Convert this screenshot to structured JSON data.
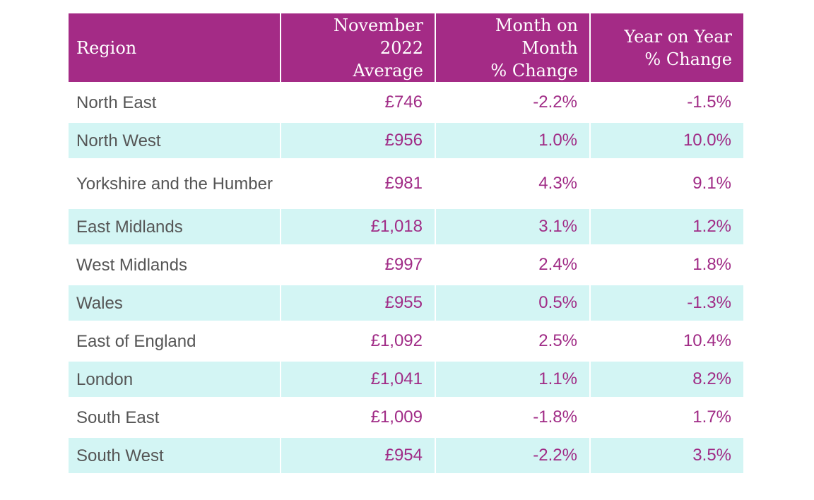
{
  "table": {
    "headers": {
      "region": "Region",
      "average": "November\n2022\nAverage",
      "mom": "Month on\nMonth\n% Change",
      "yoy": "Year on Year\n% Change"
    },
    "rows": [
      {
        "region": "North East",
        "average": "£746",
        "mom": "-2.2%",
        "yoy": "-1.5%"
      },
      {
        "region": "North West",
        "average": "£956",
        "mom": "1.0%",
        "yoy": "10.0%"
      },
      {
        "region": "Yorkshire and the Humber",
        "average": "£981",
        "mom": "4.3%",
        "yoy": "9.1%"
      },
      {
        "region": "East Midlands",
        "average": "£1,018",
        "mom": "3.1%",
        "yoy": "1.2%"
      },
      {
        "region": "West Midlands",
        "average": "£997",
        "mom": "2.4%",
        "yoy": "1.8%"
      },
      {
        "region": "Wales",
        "average": "£955",
        "mom": "0.5%",
        "yoy": "-1.3%"
      },
      {
        "region": "East of England",
        "average": "£1,092",
        "mom": "2.5%",
        "yoy": "10.4%"
      },
      {
        "region": "London",
        "average": "£1,041",
        "mom": "1.1%",
        "yoy": "8.2%"
      },
      {
        "region": "South East",
        "average": "£1,009",
        "mom": "-1.8%",
        "yoy": "1.7%"
      },
      {
        "region": "South West",
        "average": "£954",
        "mom": "-2.2%",
        "yoy": "3.5%"
      }
    ]
  },
  "colors": {
    "header_bg": "#a42b86",
    "header_text": "#ffffff",
    "alt_row_bg": "#d3f5f4",
    "value_text": "#a02b86",
    "region_text": "#555555"
  },
  "chart_data": {
    "type": "table",
    "columns": [
      "Region",
      "November 2022 Average",
      "Month on Month % Change",
      "Year on Year % Change"
    ],
    "rows": [
      [
        "North East",
        "£746",
        "-2.2%",
        "-1.5%"
      ],
      [
        "North West",
        "£956",
        "1.0%",
        "10.0%"
      ],
      [
        "Yorkshire and the Humber",
        "£981",
        "4.3%",
        "9.1%"
      ],
      [
        "East Midlands",
        "£1,018",
        "3.1%",
        "1.2%"
      ],
      [
        "West Midlands",
        "£997",
        "2.4%",
        "1.8%"
      ],
      [
        "Wales",
        "£955",
        "0.5%",
        "-1.3%"
      ],
      [
        "East of England",
        "£1,092",
        "2.5%",
        "10.4%"
      ],
      [
        "London",
        "£1,041",
        "1.1%",
        "8.2%"
      ],
      [
        "South East",
        "£1,009",
        "-1.8%",
        "1.7%"
      ],
      [
        "South West",
        "£954",
        "-2.2%",
        "3.5%"
      ]
    ]
  }
}
